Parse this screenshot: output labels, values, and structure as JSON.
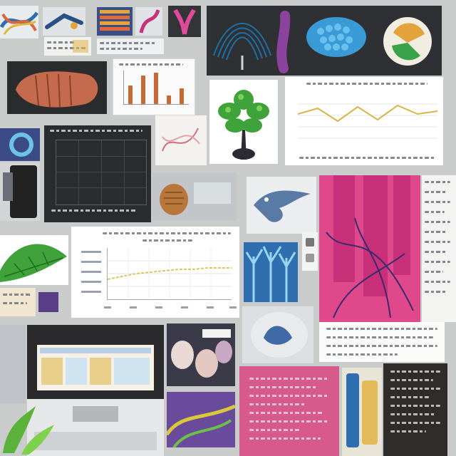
{
  "page": {
    "background": "#c9ccca"
  },
  "tiles": {
    "chart_top": {
      "chart_type": "line",
      "grid": true,
      "line_color": "#d9b545"
    },
    "chart_mid": {
      "chart_type": "line",
      "grid": true,
      "line_color": "#d8c860"
    },
    "chart_bars": {
      "chart_type": "bar",
      "bar_color": "#c36b34"
    },
    "chart_dark": {
      "chart_type": "line",
      "grid": true
    }
  },
  "colors": {
    "magenta_panel": "#e0488c",
    "pink_page": "#d85a8c",
    "dark_panel": "#2a2c30",
    "blue_panel": "#2f6fb0",
    "green_foliage": "#3fa23a"
  },
  "icons": [
    "tree-icon",
    "leaf-icon",
    "sneaker-icon",
    "bird-icon",
    "monitor-icon"
  ]
}
